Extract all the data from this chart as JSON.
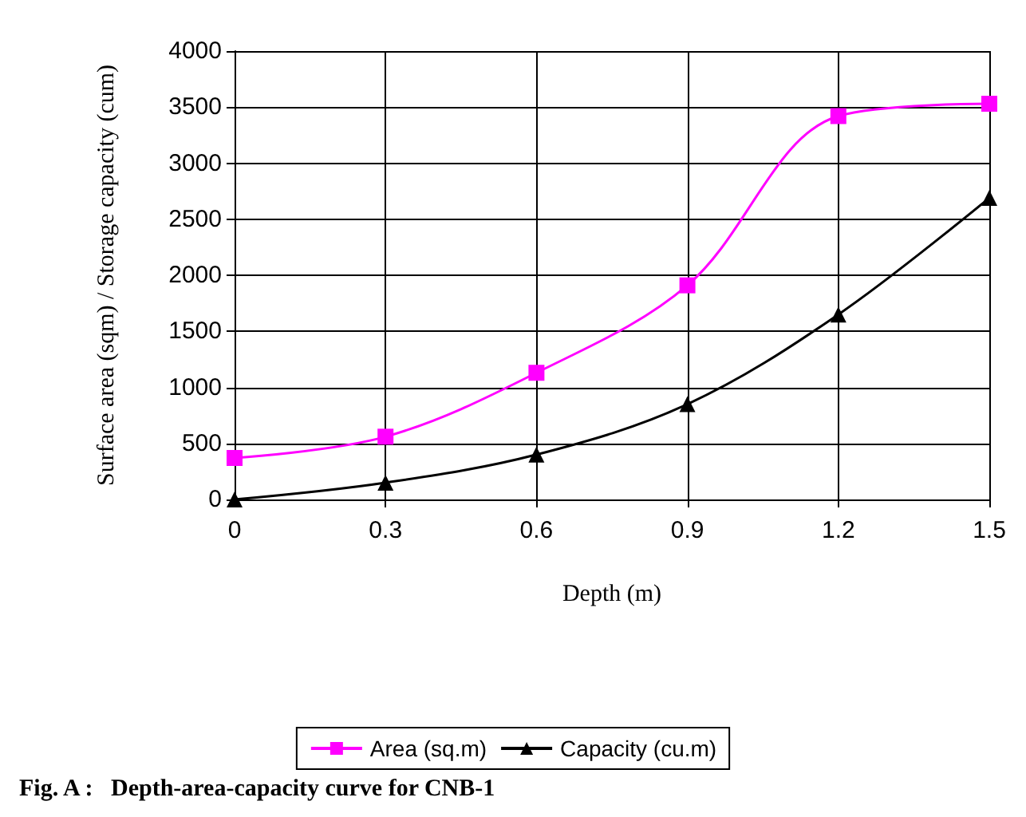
{
  "chart_data": {
    "type": "line",
    "xlabel": "Depth (m)",
    "ylabel": "Surface area (sqm) / Storage capacity (cum)",
    "x": [
      0,
      0.3,
      0.6,
      0.9,
      1.2,
      1.5
    ],
    "series": [
      {
        "name": "Area (sq.m)",
        "color": "#ff00ff",
        "marker": "square",
        "values": [
          370,
          560,
          1130,
          1910,
          3420,
          3530
        ]
      },
      {
        "name": "Capacity (cu.m)",
        "color": "#000000",
        "marker": "triangle",
        "values": [
          0,
          150,
          400,
          850,
          1650,
          2690
        ]
      }
    ],
    "xlim": [
      0,
      1.5
    ],
    "xticks": [
      0,
      0.3,
      0.6,
      0.9,
      1.2,
      1.5
    ],
    "ylim": [
      0,
      4000
    ],
    "yticks": [
      0,
      500,
      1000,
      1500,
      2000,
      2500,
      3000,
      3500,
      4000
    ],
    "grid": true,
    "legend": "bottom",
    "line_style": "solid",
    "annotations": [
      "Fig. A :   Depth-area-capacity curve for CNB-1"
    ]
  }
}
